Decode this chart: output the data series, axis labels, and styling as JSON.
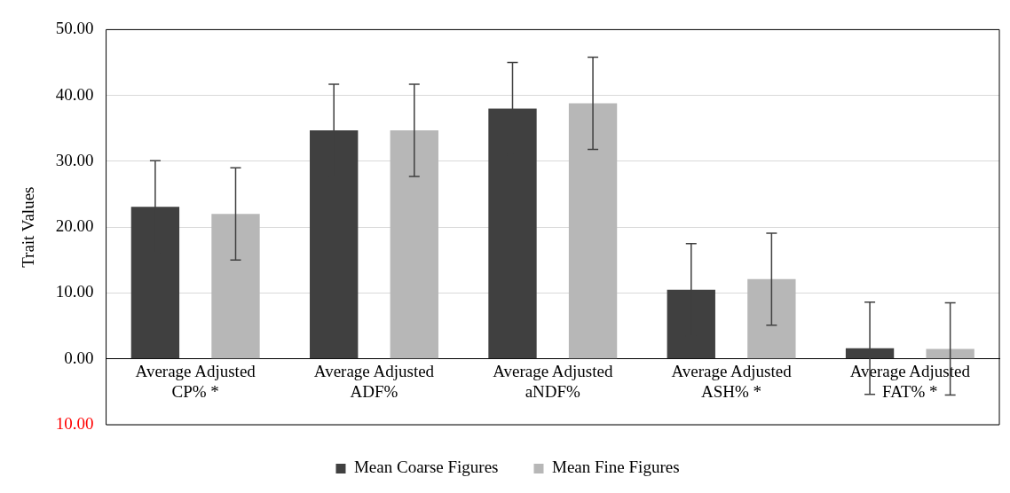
{
  "chart_data": {
    "type": "bar",
    "ylabel": "Trait Values",
    "categories": [
      "Average Adjusted CP% *",
      "Average Adjusted ADF%",
      "Average Adjusted aNDF%",
      "Average Adjusted ASH% *",
      "Average Adjusted FAT% *"
    ],
    "series": [
      {
        "name": "Mean Coarse Figures",
        "color": "#404040",
        "values": [
          23.1,
          34.7,
          38.0,
          10.5,
          1.6
        ],
        "errors": [
          7,
          7,
          7,
          7,
          7
        ]
      },
      {
        "name": "Mean Fine Figures",
        "color": "#b7b7b7",
        "values": [
          22.0,
          34.7,
          38.8,
          12.1,
          1.5
        ],
        "errors": [
          7,
          7,
          7,
          7,
          7
        ]
      }
    ],
    "ylim": [
      -10,
      50
    ],
    "yticks": [
      {
        "value": -10,
        "label": "10.00"
      },
      {
        "value": 0,
        "label": "0.00"
      },
      {
        "value": 10,
        "label": "10.00"
      },
      {
        "value": 20,
        "label": "20.00"
      },
      {
        "value": 30,
        "label": "30.00"
      },
      {
        "value": 40,
        "label": "40.00"
      },
      {
        "value": 50,
        "label": "50.00"
      }
    ],
    "grid": "y",
    "legend": "bottom"
  }
}
